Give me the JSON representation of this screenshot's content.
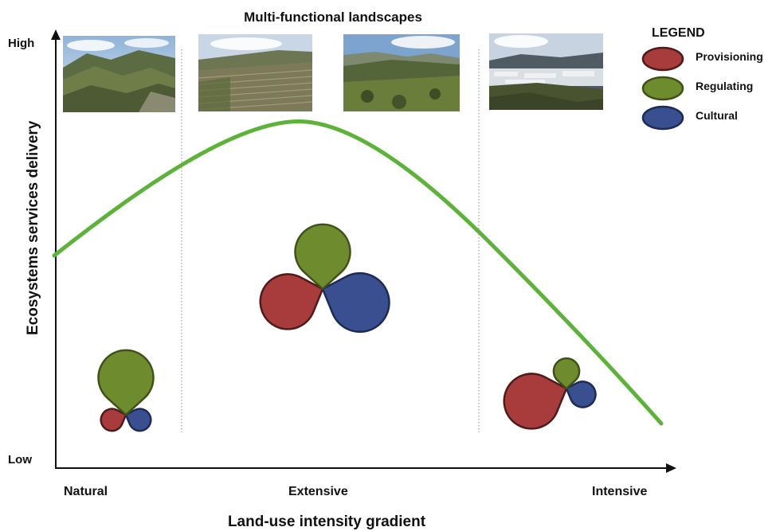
{
  "title": "Multi-functional landscapes",
  "y_axis": {
    "label": "Ecosystems services delivery",
    "high": "High",
    "low": "Low"
  },
  "x_axis": {
    "label": "Land-use intensity gradient",
    "categories": [
      "Natural",
      "Extensive",
      "Intensive"
    ]
  },
  "legend": {
    "title": "LEGEND",
    "items": [
      {
        "label": "Provisioning",
        "color": "#a83c3c"
      },
      {
        "label": "Regulating",
        "color": "#6e8c2e"
      },
      {
        "label": "Cultural",
        "color": "#3a4f8f"
      }
    ]
  },
  "curve_color": "#5db33a",
  "stages": [
    {
      "category": "Natural",
      "provisioning": 0.3,
      "regulating": 0.75,
      "cultural": 0.3
    },
    {
      "category": "Extensive",
      "provisioning": 0.75,
      "regulating": 0.75,
      "cultural": 0.8
    },
    {
      "category": "Intensive",
      "provisioning": 0.75,
      "regulating": 0.35,
      "cultural": 0.35
    }
  ],
  "photos": [
    {
      "scene": "natural-hillside"
    },
    {
      "scene": "terraced-slopes"
    },
    {
      "scene": "agricultural-valley"
    },
    {
      "scene": "greenhouse-plain"
    }
  ]
}
